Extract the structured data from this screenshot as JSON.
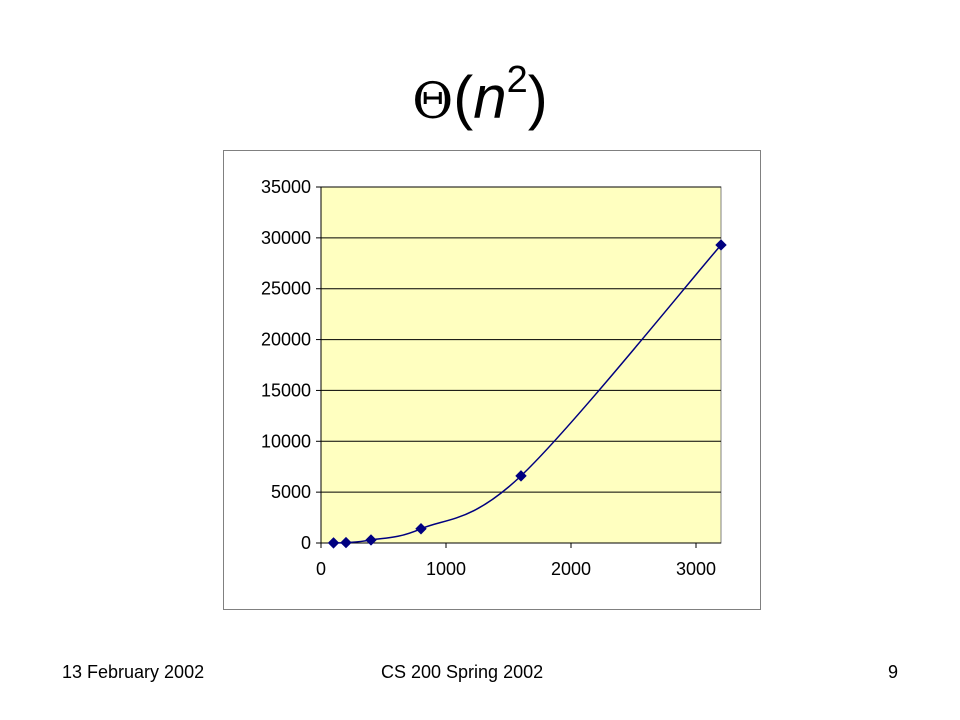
{
  "slide": {
    "title_symbol": "Θ",
    "title_open": "(",
    "title_var": "n",
    "title_exp": "2",
    "title_close": ")",
    "footer_left": "13 February 2002",
    "footer_center": "CS 200 Spring 2002",
    "footer_right": "9"
  },
  "chart_data": {
    "type": "scatter",
    "title": "",
    "xlabel": "",
    "ylabel": "",
    "xlim": [
      0,
      3200
    ],
    "ylim": [
      0,
      35000
    ],
    "xticks": [
      0,
      1000,
      2000,
      3000
    ],
    "yticks": [
      0,
      5000,
      10000,
      15000,
      20000,
      25000,
      30000,
      35000
    ],
    "grid": "horizontal",
    "legend": "none",
    "smooth_line": true,
    "series": [
      {
        "x": [
          100,
          200,
          400,
          800,
          1600,
          3200
        ],
        "y": [
          10,
          40,
          300,
          1400,
          6600,
          29300
        ]
      }
    ],
    "colors": {
      "plot_area": "#ffffc0",
      "line": "#000080",
      "marker": "#000080",
      "gridline": "#000000"
    }
  }
}
